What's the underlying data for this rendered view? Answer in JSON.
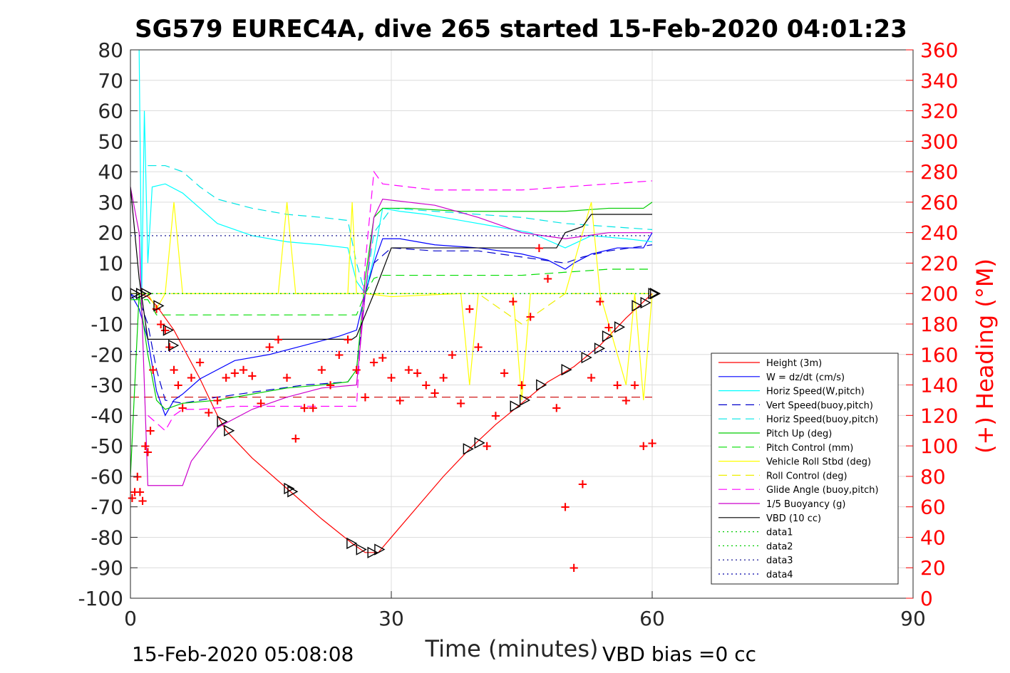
{
  "chart_data": {
    "type": "line",
    "title": "SG579 EUREC4A, dive 265 started 15-Feb-2020 04:01:23",
    "xlabel": "Time (minutes)",
    "ylabel": "",
    "y2label": "(+) Heading (°M)",
    "xlim": [
      0,
      90
    ],
    "ylim": [
      -100,
      80
    ],
    "y2lim": [
      0,
      360
    ],
    "xticks": [
      0,
      30,
      60,
      90
    ],
    "yticks": [
      80,
      70,
      60,
      50,
      40,
      30,
      20,
      10,
      0,
      -10,
      -20,
      -30,
      -40,
      -50,
      -60,
      -70,
      -80,
      -90,
      -100
    ],
    "y2ticks": [
      360,
      340,
      320,
      300,
      280,
      260,
      240,
      220,
      200,
      180,
      160,
      140,
      120,
      100,
      80,
      60,
      40,
      20,
      0
    ],
    "grid": true,
    "legend_position": "lower-right",
    "footer_left": "15-Feb-2020 05:08:08",
    "footer_right": "VBD bias =0 cc",
    "series": [
      {
        "name": "Height (3m)",
        "color": "#ff0000",
        "style": "solid",
        "x": [
          0,
          1,
          2,
          3,
          5,
          8,
          10,
          11,
          14,
          18,
          22,
          25.5,
          27,
          28.5,
          30,
          33,
          36,
          39,
          42,
          45,
          48,
          51,
          54,
          57,
          60
        ],
        "y": [
          0,
          0,
          -1,
          -4,
          -12,
          -28,
          -40,
          -45,
          -54,
          -64,
          -74,
          -82,
          -85,
          -85,
          -80,
          -70,
          -60,
          -51,
          -43,
          -36,
          -29,
          -24,
          -17,
          -8,
          0
        ]
      },
      {
        "name": "W = dz/dt (cm/s)",
        "color": "#0000ff",
        "style": "solid",
        "x": [
          0,
          1,
          2,
          3,
          4,
          5,
          6,
          8,
          12,
          16,
          20,
          24,
          26,
          27,
          28,
          29,
          31,
          35,
          40,
          45,
          48,
          50,
          51,
          53,
          56,
          59,
          60
        ],
        "y": [
          0,
          -5,
          -15,
          -32,
          -40,
          -35,
          -33,
          -28,
          -22,
          -20,
          -17,
          -14,
          -12,
          0,
          10,
          18,
          18,
          16,
          15,
          13,
          11,
          8,
          10,
          13,
          15,
          15,
          20
        ]
      },
      {
        "name": "Horiz Speed(W,pitch)",
        "color": "#00ffff",
        "style": "solid",
        "x": [
          1,
          1.3,
          1.6,
          2,
          2.5,
          4,
          6,
          8,
          10,
          14,
          18,
          22,
          25,
          26,
          27,
          28,
          29,
          31,
          34,
          38,
          42,
          46,
          50,
          53,
          57,
          60
        ],
        "y": [
          80,
          0,
          60,
          10,
          35,
          36,
          33,
          28,
          23,
          19,
          17,
          16,
          15,
          4,
          0,
          12,
          28,
          27,
          26,
          24,
          22,
          20,
          15,
          19,
          18,
          17
        ]
      },
      {
        "name": "Vert Speed(buoy,pitch)",
        "color": "#0000cc",
        "style": "dash",
        "x": [
          0,
          1,
          2,
          3,
          4,
          6,
          10,
          15,
          20,
          25,
          26,
          27,
          28,
          30,
          35,
          40,
          45,
          50,
          52,
          55,
          60
        ],
        "y": [
          0,
          -2,
          -10,
          -25,
          -35,
          -36,
          -34,
          -32,
          -30,
          -29,
          -25,
          0,
          10,
          15,
          14,
          14,
          12,
          10,
          12,
          14,
          16
        ]
      },
      {
        "name": "Horiz Speed(buoy,pitch)",
        "color": "#00e5e5",
        "style": "dash",
        "x": [
          2,
          4,
          6,
          8,
          10,
          14,
          18,
          22,
          25,
          26,
          27,
          28,
          30,
          35,
          40,
          45,
          50,
          55,
          60
        ],
        "y": [
          42,
          42,
          40,
          35,
          31,
          28,
          26,
          25,
          24,
          10,
          0,
          20,
          28,
          27,
          26,
          25,
          23,
          22,
          21
        ]
      },
      {
        "name": "Pitch Up (deg)",
        "color": "#00cc00",
        "style": "solid",
        "x": [
          0,
          0.5,
          1,
          2,
          3,
          4,
          6,
          10,
          14,
          18,
          22,
          25,
          26,
          27,
          28,
          29,
          32,
          38,
          44,
          50,
          55,
          59,
          60
        ],
        "y": [
          -60,
          -30,
          0,
          -20,
          -35,
          -38,
          -36,
          -35,
          -33,
          -31,
          -30,
          -29,
          -25,
          5,
          25,
          28,
          28,
          27,
          27,
          27,
          28,
          28,
          30
        ]
      },
      {
        "name": "Pitch Control (mm)",
        "color": "#00dd00",
        "style": "dash",
        "x": [
          0,
          2,
          3,
          26,
          27,
          28,
          29,
          45,
          50,
          55,
          60
        ],
        "y": [
          -2,
          -2,
          -7,
          -7,
          0,
          5,
          6,
          6,
          7,
          8,
          8
        ]
      },
      {
        "name": "Vehicle Roll Stbd (deg)",
        "color": "#ffff00",
        "style": "solid",
        "x": [
          0,
          2,
          3,
          4,
          5,
          6,
          10,
          17,
          18,
          19,
          25,
          25.5,
          26,
          27,
          30,
          38,
          39,
          40,
          44,
          45,
          46,
          50,
          53,
          54,
          57,
          58,
          59,
          60
        ],
        "y": [
          0,
          0,
          -5,
          0,
          30,
          0,
          0,
          0,
          30,
          0,
          0,
          30,
          0,
          0,
          -1,
          0,
          -30,
          0,
          0,
          -35,
          0,
          0,
          30,
          0,
          -30,
          0,
          -35,
          0
        ]
      },
      {
        "name": "Roll Control (deg)",
        "color": "#eeee00",
        "style": "dash",
        "x": [
          0,
          5,
          10,
          20,
          30,
          40,
          45,
          50,
          55,
          60
        ],
        "y": [
          0,
          0,
          0,
          0,
          0,
          0,
          -10,
          0,
          0,
          0
        ]
      },
      {
        "name": "Glide Angle (buoy,pitch)",
        "color": "#ff00ff",
        "style": "dash",
        "x": [
          2,
          4,
          5,
          6,
          8,
          12,
          18,
          22,
          26,
          27,
          28,
          29,
          35,
          40,
          45,
          50,
          55,
          60
        ],
        "y": [
          -40,
          -45,
          -40,
          -38,
          -38,
          -37,
          -37,
          -37,
          -37,
          10,
          40,
          36,
          34,
          34,
          34,
          35,
          36,
          37
        ]
      },
      {
        "name": "1/5 Buoyancy (g)",
        "color": "#cc00cc",
        "style": "solid",
        "x": [
          0,
          1,
          2,
          6,
          7,
          10,
          14,
          18,
          22,
          26,
          27,
          28,
          29,
          35,
          40,
          45,
          50,
          55,
          60
        ],
        "y": [
          35,
          20,
          -63,
          -63,
          -55,
          -44,
          -38,
          -34,
          -31,
          -30,
          0,
          25,
          31,
          29,
          25,
          20,
          18,
          20,
          20
        ]
      },
      {
        "name": "VBD (10 cc)",
        "color": "#000000",
        "style": "solid",
        "x": [
          0,
          1,
          2,
          4,
          10,
          20,
          25.5,
          26,
          28,
          30,
          32,
          45,
          49,
          50,
          52,
          53,
          55,
          60
        ],
        "y": [
          35,
          5,
          -15,
          -15,
          -15,
          -15,
          -15,
          -14,
          0,
          15,
          15,
          15,
          15,
          20,
          22,
          26,
          26,
          26
        ]
      },
      {
        "name": "data1",
        "color": "#00cc00",
        "style": "dot",
        "x": [
          0,
          60
        ],
        "y": [
          0,
          0
        ]
      },
      {
        "name": "data2",
        "color": "#00cc00",
        "style": "dot",
        "x": [
          0,
          60
        ],
        "y": [
          0,
          0
        ]
      },
      {
        "name": "data3",
        "color": "#000088",
        "style": "dot",
        "x": [
          0,
          60
        ],
        "y": [
          19,
          19
        ]
      },
      {
        "name": "data4",
        "color": "#0000aa",
        "style": "dot",
        "x": [
          0,
          60
        ],
        "y": [
          -19,
          -19
        ]
      }
    ],
    "reference_lines": [
      {
        "color": "#cc0000",
        "style": "dash",
        "x": [
          0,
          60
        ],
        "y": [
          -34,
          -34
        ]
      }
    ],
    "heading_points": {
      "color": "#ff0000",
      "marker": "+",
      "x": [
        0.2,
        0.5,
        0.8,
        1.1,
        1.4,
        1.7,
        2,
        2.3,
        2.6,
        3,
        3.5,
        4,
        4.5,
        5,
        5.5,
        6,
        7,
        8,
        9,
        10,
        11,
        12,
        13,
        14,
        15,
        16,
        17,
        18,
        19,
        20,
        21,
        22,
        23,
        24,
        25,
        26,
        27,
        28,
        29,
        30,
        31,
        32,
        33,
        34,
        35,
        36,
        37,
        38,
        39,
        40,
        41,
        42,
        43,
        44,
        45,
        46,
        47,
        48,
        49,
        50,
        51,
        52,
        53,
        54,
        55,
        56,
        57,
        58,
        59,
        60
      ],
      "y": [
        66,
        70,
        80,
        70,
        64,
        100,
        96,
        110,
        150,
        190,
        180,
        176,
        165,
        150,
        140,
        125,
        145,
        155,
        122,
        130,
        145,
        148,
        150,
        146,
        128,
        165,
        170,
        145,
        105,
        125,
        125,
        150,
        140,
        160,
        170,
        150,
        132,
        155,
        158,
        145,
        130,
        150,
        148,
        140,
        135,
        145,
        160,
        128,
        190,
        165,
        100,
        120,
        148,
        195,
        140,
        185,
        230,
        210,
        125,
        60,
        20,
        75,
        145,
        195,
        178,
        140,
        130,
        140,
        100,
        102
      ]
    },
    "triangle_markers": {
      "color": "#000000",
      "x": [
        0.5,
        1.2,
        1.8,
        3.2,
        4.3,
        4.9,
        10.5,
        11.3,
        18.2,
        18.6,
        25.4,
        26.5,
        27.8,
        28.6,
        38.8,
        40.1,
        44.2,
        45.3,
        47.2,
        50.1,
        52.4,
        53.9,
        54.8,
        56.2,
        58.2,
        59.2,
        60.1,
        60.3
      ],
      "y": [
        0,
        0,
        0,
        -4,
        -12,
        -17,
        -42,
        -45,
        -64,
        -65,
        -82,
        -84,
        -85,
        -84,
        -51,
        -49,
        -37,
        -35,
        -30,
        -25,
        -21,
        -18,
        -14,
        -11,
        -4,
        -3,
        0,
        0
      ]
    }
  }
}
